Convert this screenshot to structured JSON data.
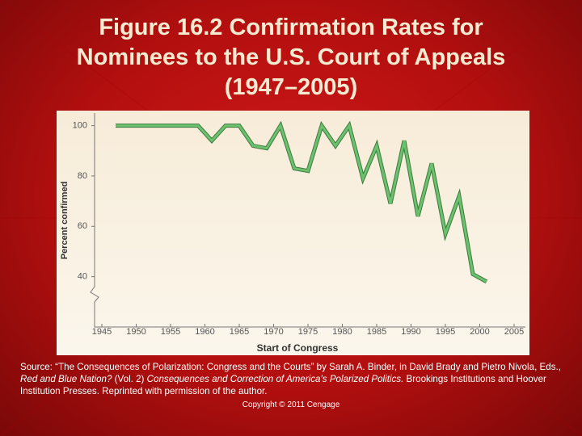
{
  "chart_data": {
    "type": "line",
    "title": [
      "Figure 16.2 Confirmation Rates for",
      "Nominees to the U.S. Court of Appeals",
      "(1947–2005)"
    ],
    "x_label": "Start of Congress",
    "y_label": "Percent confirmed",
    "x": [
      1947,
      1949,
      1951,
      1953,
      1955,
      1957,
      1959,
      1961,
      1963,
      1965,
      1967,
      1969,
      1971,
      1973,
      1975,
      1977,
      1979,
      1981,
      1983,
      1985,
      1987,
      1989,
      1991,
      1993,
      1995,
      1997,
      1999,
      2001
    ],
    "values": [
      100,
      100,
      100,
      100,
      100,
      100,
      100,
      94,
      100,
      100,
      92,
      91,
      100,
      83,
      82,
      100,
      92,
      100,
      79,
      92,
      69,
      94,
      64,
      85,
      57,
      72,
      41,
      38
    ],
    "color": "#6cc16e",
    "xlim": [
      1942,
      2007
    ],
    "ylim": [
      20,
      105
    ],
    "xticks": [
      1945,
      1950,
      1955,
      1960,
      1965,
      1970,
      1975,
      1980,
      1985,
      1990,
      1995,
      2000,
      2005
    ],
    "yticks": [
      40,
      60,
      80,
      100
    ]
  },
  "source": [
    "Source: “The Consequences of Polarization: Congress and the Courts” by Sarah A. Binder, in David Brady and Pietro Nivola, Eds., ",
    "Red and Blue Nation?",
    " (Vol. 2) ",
    "Consequences and Correction of America’s Polarized Politics.",
    " Brookings Institutions and Hoover Institution Presses. Reprinted with permission of the author."
  ],
  "copyright": "Copyright © 2011 Cengage"
}
